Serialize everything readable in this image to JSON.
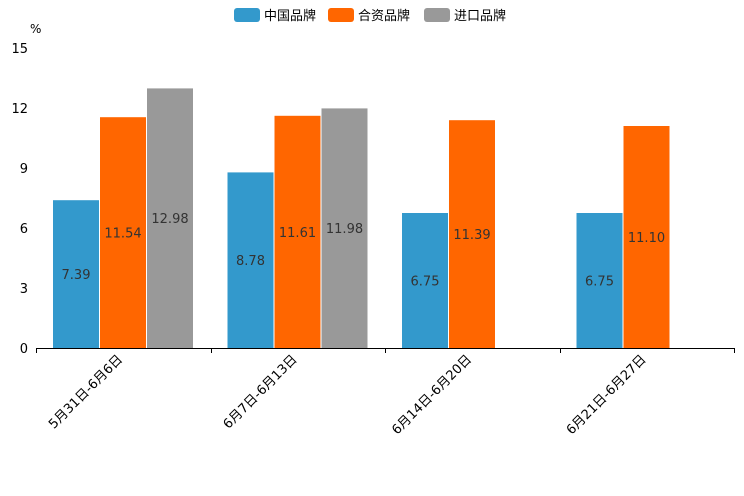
{
  "chart_data": {
    "type": "bar",
    "unit": "%",
    "categories": [
      "5月31日-6月6日",
      "6月7日-6月13日",
      "6月14日-6月20日",
      "6月21日-6月27日"
    ],
    "series": [
      {
        "name": "中国品牌",
        "color": "#3399cc",
        "values": [
          7.39,
          8.78,
          6.75,
          6.75
        ]
      },
      {
        "name": "合资品牌",
        "color": "#ff6600",
        "values": [
          11.54,
          11.61,
          11.39,
          11.1
        ]
      },
      {
        "name": "进口品牌",
        "color": "#999999",
        "values": [
          12.98,
          11.98,
          null,
          null
        ]
      }
    ],
    "ylim": [
      0,
      15
    ],
    "yticks": [
      0,
      3,
      6,
      9,
      12,
      15
    ],
    "legend_position": "top-center",
    "grid": false
  }
}
